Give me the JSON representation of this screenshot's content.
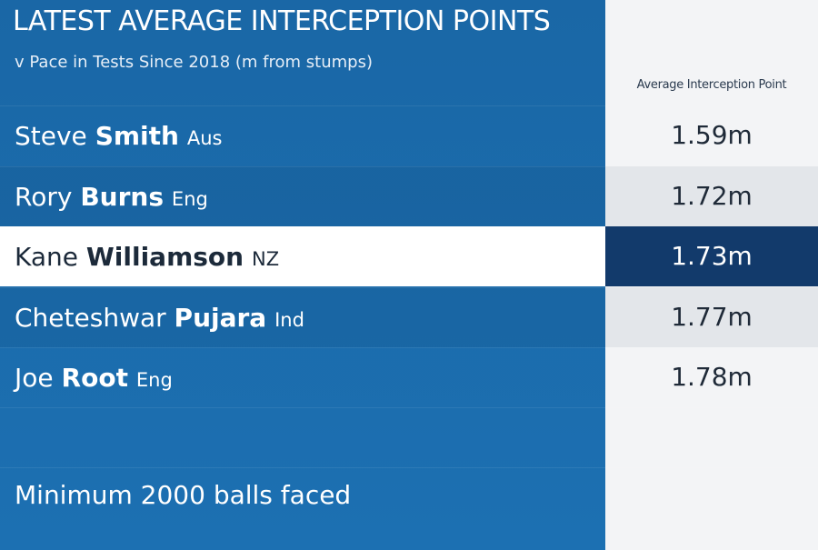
{
  "header": {
    "title": "LATEST AVERAGE INTERCEPTION POINTS",
    "subtitle": "v Pace in Tests Since 2018 (m from stumps)"
  },
  "table": {
    "column_header": "Average Interception Point",
    "highlight_row": 2,
    "rows": [
      {
        "first_name": "Steve",
        "surname": "Smith",
        "country": "Aus",
        "value": "1.59m"
      },
      {
        "first_name": "Rory",
        "surname": "Burns",
        "country": "Eng",
        "value": "1.72m"
      },
      {
        "first_name": "Kane",
        "surname": "Williamson",
        "country": "NZ",
        "value": "1.73m"
      },
      {
        "first_name": "Cheteshwar",
        "surname": "Pujara",
        "country": "Ind",
        "value": "1.77m"
      },
      {
        "first_name": "Joe",
        "surname": "Root",
        "country": "Eng",
        "value": "1.78m"
      }
    ]
  },
  "footnote": "Minimum 2000 balls faced"
}
